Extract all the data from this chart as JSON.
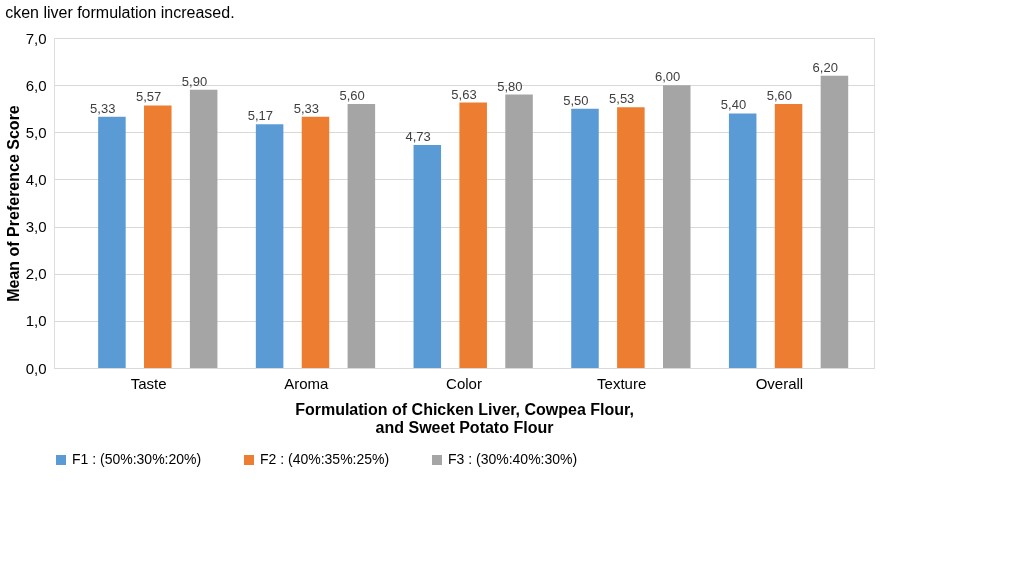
{
  "chart_data": {
    "type": "bar",
    "xlabel": "Formulation of Chicken Liver, Cowpea Flour,\nand Sweet Potato Flour",
    "ylabel": "Mean of Preference Score",
    "annotations": [
      "cken liver formulation increased."
    ],
    "categories": [
      "Taste",
      "Aroma",
      "Color",
      "Texture",
      "Overall"
    ],
    "series": [
      {
        "name": "F1 : (50%:30%:20%)",
        "color": "#5b9bd5",
        "values": [
          5.33,
          5.17,
          4.73,
          5.5,
          5.4
        ],
        "value_labels": [
          "5,33",
          "5,17",
          "4,73",
          "5,50",
          "5,40"
        ]
      },
      {
        "name": "F2 : (40%:35%:25%)",
        "color": "#ed7d31",
        "values": [
          5.57,
          5.33,
          5.63,
          5.53,
          5.6
        ],
        "value_labels": [
          "5,57",
          "5,33",
          "5,63",
          "5,53",
          "5,60"
        ]
      },
      {
        "name": "F3 : (30%:40%:30%)",
        "color": "#a5a5a5",
        "values": [
          5.9,
          5.6,
          5.8,
          6.0,
          6.2
        ],
        "value_labels": [
          "5,90",
          "5,60",
          "5,80",
          "6,00",
          "6,20"
        ]
      }
    ],
    "ylim": [
      0,
      7
    ],
    "yticks": [
      {
        "value": 0,
        "label": "0,0"
      },
      {
        "value": 1,
        "label": "1,0"
      },
      {
        "value": 2,
        "label": "2,0"
      },
      {
        "value": 3,
        "label": "3,0"
      },
      {
        "value": 4,
        "label": "4,0"
      },
      {
        "value": 5,
        "label": "5,0"
      },
      {
        "value": 6,
        "label": "6,0"
      },
      {
        "value": 7,
        "label": "7,0"
      }
    ],
    "grid": "y",
    "legend": "bottom"
  }
}
